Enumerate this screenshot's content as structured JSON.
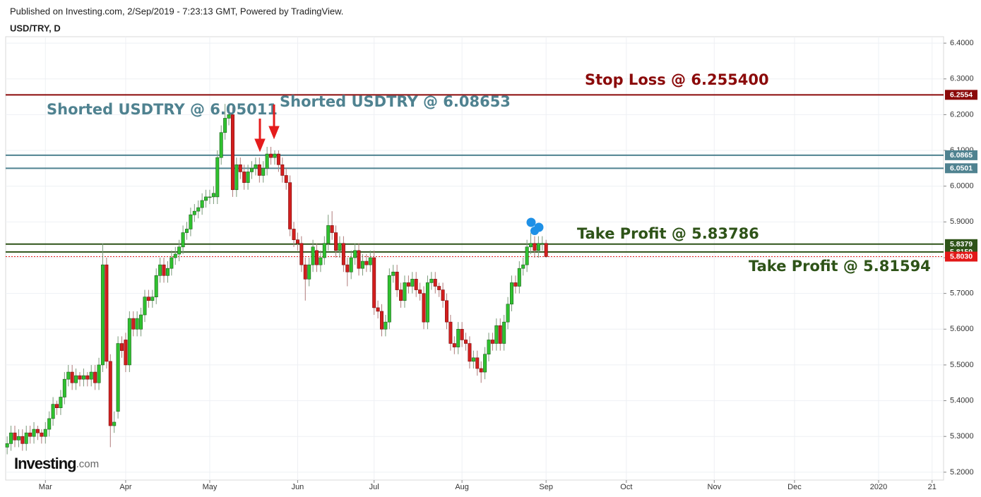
{
  "header": {
    "published": "Published on Investing.com, 2/Sep/2019 - 7:23:13 GMT, Powered by TradingView.",
    "symbol": "USD/TRY, D"
  },
  "logo": {
    "brand": "Investing",
    "suffix": ".com"
  },
  "chart_data": {
    "type": "candlestick",
    "x": [
      0,
      1,
      2,
      3,
      4,
      5,
      6,
      7,
      8,
      9,
      10,
      11,
      12,
      13,
      14,
      15,
      16,
      17,
      18,
      19,
      20,
      21,
      22,
      23,
      24,
      25,
      26,
      27,
      28,
      29,
      30,
      31,
      32,
      33,
      34,
      35,
      36,
      37,
      38,
      39,
      40,
      41,
      42,
      43,
      44,
      45,
      46,
      47,
      48,
      49,
      50,
      51,
      52,
      53,
      54,
      55,
      56,
      57,
      58,
      59,
      60,
      61,
      62,
      63,
      64,
      65,
      66,
      67,
      68,
      69,
      70,
      71,
      72,
      73,
      74,
      75,
      76,
      77,
      78,
      79,
      80,
      81,
      82,
      83,
      84,
      85,
      86,
      87,
      88,
      89,
      90,
      91,
      92,
      93,
      94,
      95,
      96,
      97,
      98,
      99,
      100,
      101,
      102,
      103,
      104,
      105,
      106,
      107,
      108,
      109,
      110,
      111,
      112,
      113,
      114,
      115,
      116,
      117,
      118,
      119,
      120,
      121,
      122,
      123,
      124,
      125,
      126,
      127,
      128,
      129,
      130,
      131,
      132,
      133,
      134,
      135,
      136,
      137,
      138,
      139,
      140,
      141
    ],
    "open": [
      5.27,
      5.28,
      5.31,
      5.29,
      5.3,
      5.28,
      5.31,
      5.3,
      5.32,
      5.31,
      5.3,
      5.32,
      5.35,
      5.39,
      5.38,
      5.41,
      5.46,
      5.48,
      5.45,
      5.47,
      5.46,
      5.47,
      5.46,
      5.48,
      5.45,
      5.5,
      5.78,
      5.51,
      5.33,
      5.37,
      5.56,
      5.57,
      5.5,
      5.63,
      5.6,
      5.6,
      5.64,
      5.69,
      5.68,
      5.69,
      5.75,
      5.78,
      5.75,
      5.77,
      5.8,
      5.81,
      5.83,
      5.87,
      5.88,
      5.92,
      5.93,
      5.94,
      5.96,
      5.97,
      5.97,
      5.97,
      6.08,
      6.15,
      6.19,
      6.2,
      5.99,
      6.06,
      6.04,
      6.01,
      6.04,
      6.05,
      6.06,
      6.03,
      6.05,
      6.09,
      6.08,
      6.09,
      6.06,
      6.03,
      6.01,
      5.88,
      5.85,
      5.84,
      5.78,
      5.74,
      5.78,
      5.82,
      5.78,
      5.8,
      5.84,
      5.89,
      5.87,
      5.82,
      5.84,
      5.78,
      5.76,
      5.8,
      5.82,
      5.77,
      5.79,
      5.78,
      5.8,
      5.66,
      5.65,
      5.6,
      5.62,
      5.75,
      5.76,
      5.71,
      5.68,
      5.73,
      5.72,
      5.74,
      5.71,
      5.7,
      5.62,
      5.73,
      5.74,
      5.72,
      5.71,
      5.68,
      5.62,
      5.56,
      5.55,
      5.6,
      5.57,
      5.56,
      5.51,
      5.52,
      5.49,
      5.48,
      5.53,
      5.57,
      5.56,
      5.61,
      5.56,
      5.62,
      5.67,
      5.73,
      5.72,
      5.77,
      5.78,
      5.83,
      5.84,
      5.82,
      5.84,
      5.84
    ],
    "high": [
      5.3,
      5.33,
      5.33,
      5.32,
      5.32,
      5.33,
      5.33,
      5.34,
      5.33,
      5.32,
      5.34,
      5.37,
      5.41,
      5.4,
      5.43,
      5.48,
      5.5,
      5.5,
      5.49,
      5.48,
      5.49,
      5.48,
      5.5,
      5.5,
      5.52,
      5.84,
      5.8,
      5.53,
      5.37,
      5.58,
      5.58,
      5.59,
      5.65,
      5.65,
      5.65,
      5.66,
      5.71,
      5.71,
      5.71,
      5.77,
      5.8,
      5.8,
      5.79,
      5.82,
      5.83,
      5.85,
      5.89,
      5.9,
      5.94,
      5.95,
      5.96,
      5.98,
      5.99,
      5.99,
      6.0,
      6.1,
      6.17,
      6.23,
      6.23,
      6.22,
      6.08,
      6.08,
      6.06,
      6.06,
      6.07,
      6.08,
      6.08,
      6.07,
      6.11,
      6.11,
      6.1,
      6.1,
      6.08,
      6.05,
      6.03,
      5.9,
      5.87,
      5.86,
      5.8,
      5.8,
      5.85,
      5.84,
      5.82,
      5.86,
      5.92,
      5.93,
      5.89,
      5.86,
      5.86,
      5.8,
      5.82,
      5.84,
      5.84,
      5.81,
      5.81,
      5.82,
      5.82,
      5.68,
      5.67,
      5.64,
      5.77,
      5.78,
      5.78,
      5.73,
      5.75,
      5.75,
      5.76,
      5.76,
      5.73,
      5.72,
      5.75,
      5.76,
      5.76,
      5.73,
      5.73,
      5.7,
      5.64,
      5.58,
      5.62,
      5.62,
      5.59,
      5.58,
      5.54,
      5.54,
      5.51,
      5.55,
      5.59,
      5.59,
      5.63,
      5.63,
      5.64,
      5.69,
      5.75,
      5.75,
      5.79,
      5.8,
      5.85,
      5.87,
      5.86,
      5.86,
      5.86,
      5.85
    ],
    "low": [
      5.25,
      5.26,
      5.27,
      5.27,
      5.26,
      5.26,
      5.28,
      5.28,
      5.29,
      5.28,
      5.28,
      5.3,
      5.33,
      5.36,
      5.36,
      5.39,
      5.44,
      5.43,
      5.43,
      5.44,
      5.44,
      5.44,
      5.44,
      5.43,
      5.43,
      5.48,
      5.49,
      5.27,
      5.31,
      5.35,
      5.52,
      5.48,
      5.48,
      5.58,
      5.58,
      5.58,
      5.62,
      5.66,
      5.66,
      5.67,
      5.73,
      5.73,
      5.73,
      5.75,
      5.78,
      5.79,
      5.81,
      5.85,
      5.86,
      5.9,
      5.91,
      5.92,
      5.94,
      5.95,
      5.95,
      5.95,
      6.06,
      6.13,
      6.17,
      5.97,
      5.97,
      6.02,
      5.99,
      5.99,
      6.02,
      6.03,
      6.01,
      6.01,
      6.03,
      6.06,
      6.06,
      6.04,
      6.01,
      5.99,
      5.86,
      5.83,
      5.82,
      5.76,
      5.68,
      5.72,
      5.76,
      5.76,
      5.76,
      5.78,
      5.82,
      5.85,
      5.8,
      5.8,
      5.76,
      5.72,
      5.74,
      5.78,
      5.75,
      5.75,
      5.76,
      5.76,
      5.64,
      5.63,
      5.58,
      5.58,
      5.6,
      5.73,
      5.69,
      5.66,
      5.66,
      5.7,
      5.7,
      5.69,
      5.68,
      5.6,
      5.6,
      5.71,
      5.7,
      5.69,
      5.66,
      5.6,
      5.54,
      5.53,
      5.53,
      5.55,
      5.54,
      5.49,
      5.49,
      5.47,
      5.45,
      5.46,
      5.51,
      5.54,
      5.54,
      5.54,
      5.54,
      5.6,
      5.65,
      5.7,
      5.7,
      5.75,
      5.76,
      5.81,
      5.8,
      5.8,
      5.82,
      5.8
    ],
    "close": [
      5.28,
      5.31,
      5.29,
      5.3,
      5.28,
      5.31,
      5.3,
      5.32,
      5.31,
      5.3,
      5.32,
      5.35,
      5.39,
      5.38,
      5.41,
      5.46,
      5.48,
      5.45,
      5.47,
      5.46,
      5.47,
      5.46,
      5.48,
      5.45,
      5.5,
      5.78,
      5.51,
      5.33,
      5.34,
      5.56,
      5.54,
      5.5,
      5.63,
      5.6,
      5.63,
      5.64,
      5.69,
      5.68,
      5.69,
      5.75,
      5.78,
      5.75,
      5.77,
      5.8,
      5.81,
      5.83,
      5.87,
      5.88,
      5.92,
      5.93,
      5.94,
      5.96,
      5.97,
      5.97,
      5.98,
      6.08,
      6.15,
      6.19,
      6.2,
      5.99,
      6.06,
      6.04,
      6.01,
      6.04,
      6.05,
      6.06,
      6.03,
      6.05,
      6.09,
      6.08,
      6.09,
      6.06,
      6.03,
      6.01,
      5.88,
      5.85,
      5.84,
      5.78,
      5.74,
      5.78,
      5.83,
      5.78,
      5.8,
      5.84,
      5.89,
      5.87,
      5.82,
      5.84,
      5.78,
      5.76,
      5.8,
      5.82,
      5.77,
      5.79,
      5.78,
      5.8,
      5.66,
      5.65,
      5.6,
      5.62,
      5.75,
      5.76,
      5.71,
      5.68,
      5.73,
      5.72,
      5.74,
      5.71,
      5.7,
      5.62,
      5.73,
      5.74,
      5.72,
      5.71,
      5.68,
      5.62,
      5.56,
      5.55,
      5.6,
      5.57,
      5.56,
      5.51,
      5.52,
      5.49,
      5.48,
      5.53,
      5.57,
      5.56,
      5.61,
      5.56,
      5.62,
      5.67,
      5.73,
      5.72,
      5.77,
      5.78,
      5.83,
      5.84,
      5.82,
      5.84,
      5.84,
      5.803
    ],
    "up_color": "#2fc12f",
    "down_color": "#d21e1e",
    "xlim": [
      -0.4,
      245
    ],
    "xticks": [
      {
        "value": 10,
        "label": "Mar"
      },
      {
        "value": 31,
        "label": "Apr"
      },
      {
        "value": 53,
        "label": "May"
      },
      {
        "value": 76,
        "label": "Jun"
      },
      {
        "value": 96,
        "label": "Jul"
      },
      {
        "value": 119,
        "label": "Aug"
      },
      {
        "value": 141,
        "label": "Sep"
      },
      {
        "value": 162,
        "label": "Oct"
      },
      {
        "value": 185,
        "label": "Nov"
      },
      {
        "value": 206,
        "label": "Dec"
      },
      {
        "value": 228,
        "label": "2020"
      },
      {
        "value": 242,
        "label": "21"
      }
    ],
    "ylim": [
      5.178,
      6.418
    ],
    "yticks": [
      {
        "value": 5.2,
        "label": "5.2000"
      },
      {
        "value": 5.3,
        "label": "5.3000"
      },
      {
        "value": 5.4,
        "label": "5.4000"
      },
      {
        "value": 5.5,
        "label": "5.5000"
      },
      {
        "value": 5.6,
        "label": "5.6000"
      },
      {
        "value": 5.7,
        "label": "5.7000"
      },
      {
        "value": 5.8,
        "label": "5.8000"
      },
      {
        "value": 5.9,
        "label": "5.9000"
      },
      {
        "value": 6.0,
        "label": "6.0000"
      },
      {
        "value": 6.1,
        "label": "6.1000"
      },
      {
        "value": 6.2,
        "label": "6.2000"
      },
      {
        "value": 6.3,
        "label": "6.3000"
      },
      {
        "value": 6.4,
        "label": "6.4000"
      }
    ],
    "grid": true,
    "hlines": [
      {
        "value": 6.2554,
        "color": "#8b0a0a"
      },
      {
        "value": 6.0865,
        "color": "#4f8290"
      },
      {
        "value": 6.0501,
        "color": "#4f8290"
      },
      {
        "value": 5.8379,
        "color": "#2e5318"
      },
      {
        "value": 5.8159,
        "color": "#2e5318"
      },
      {
        "value": 5.803,
        "label": "5.8030",
        "color": "#e21818",
        "style": "dotted"
      }
    ],
    "annotations": [
      {
        "text": "Stop Loss @ 6.255400",
        "color": "#8b0a0a"
      },
      {
        "text": "Shorted USDTRY @ 6.05011",
        "color": "#4f8290"
      },
      {
        "text": "Shorted USDTRY @ 6.08653",
        "color": "#4f8290"
      },
      {
        "text": "Take Profit @ 5.83786",
        "color": "#2e5318"
      },
      {
        "text": "Take Profit @ 5.81594",
        "color": "#2e5318"
      }
    ]
  }
}
